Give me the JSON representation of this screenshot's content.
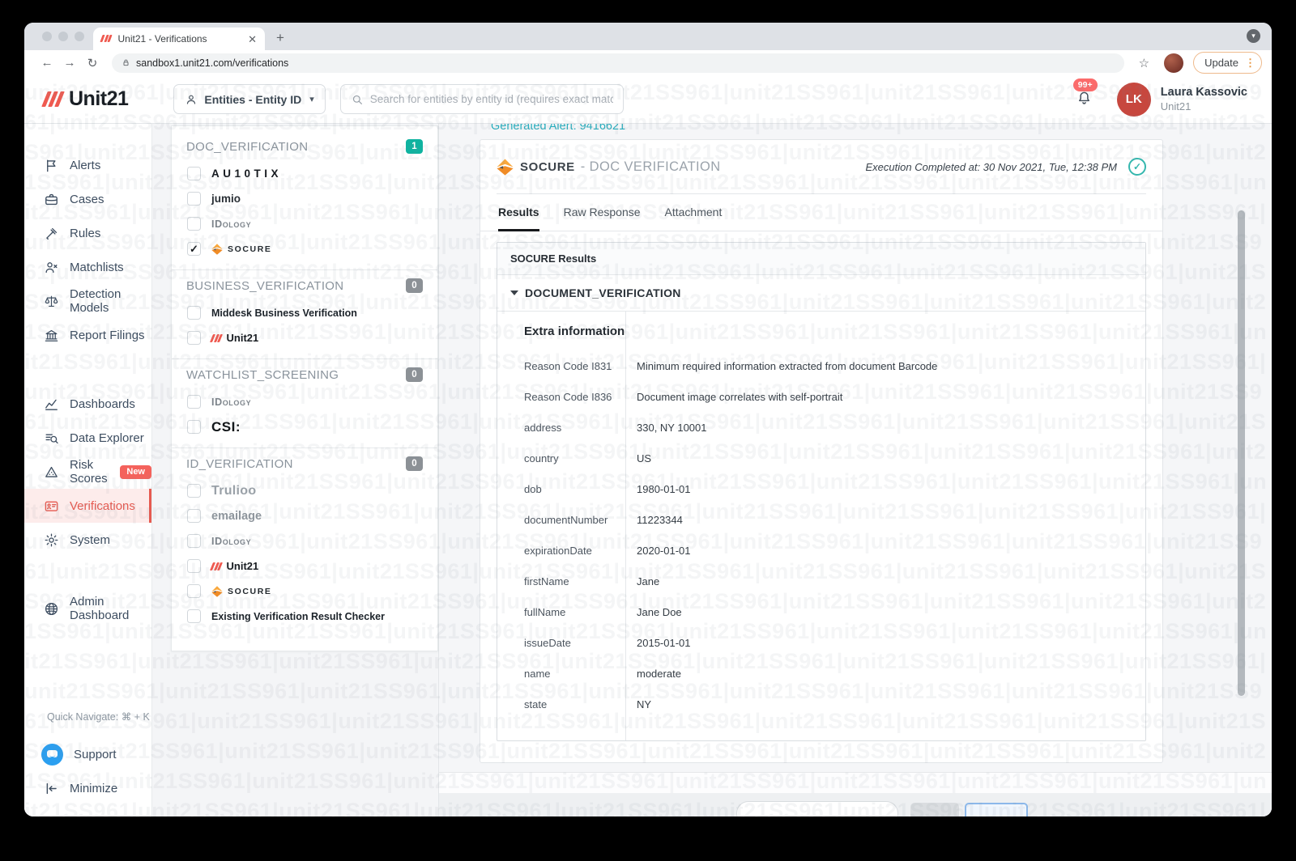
{
  "watermark": {
    "text": "unit21SS961|"
  },
  "browser": {
    "tab_title": "Unit21 - Verifications",
    "close_glyph": "✕",
    "new_tab_glyph": "+",
    "back_glyph": "←",
    "forward_glyph": "→",
    "reload_glyph": "↻",
    "url": "sandbox1.unit21.com/verifications",
    "star_glyph": "☆",
    "update_label": "Update",
    "kebab_glyph": "⋮",
    "download_chevron": "▾"
  },
  "header": {
    "brand": "Unit21",
    "entity_dropdown_label": "Entities - Entity ID",
    "dropdown_chevron": "▾",
    "search_placeholder": "Search for entities by entity id (requires exact match)",
    "notification_count": "99+",
    "user": {
      "initials": "LK",
      "name": "Laura Kassovic",
      "org": "Unit21"
    }
  },
  "sidebar": {
    "items": [
      {
        "label": "Alerts",
        "icon": "flag-icon"
      },
      {
        "label": "Cases",
        "icon": "briefcase-icon"
      },
      {
        "label": "Rules",
        "icon": "gavel-icon"
      },
      {
        "label": "Matchlists",
        "icon": "matchlist-icon"
      },
      {
        "label": "Detection Models",
        "icon": "scales-icon"
      },
      {
        "label": "Report Filings",
        "icon": "bank-icon",
        "gap_after": true
      },
      {
        "label": "Dashboards",
        "icon": "chart-icon"
      },
      {
        "label": "Data Explorer",
        "icon": "data-explorer-icon"
      },
      {
        "label": "Risk Scores",
        "icon": "warning-icon",
        "badge": "New"
      },
      {
        "label": "Verifications",
        "icon": "id-card-icon",
        "active": true
      },
      {
        "label": "System",
        "icon": "gear-icon",
        "gap_after": true
      },
      {
        "label": "Admin Dashboard",
        "icon": "globe-icon"
      }
    ],
    "quick_navigate": "Quick Navigate: ⌘ + K",
    "support_label": "Support",
    "minimize_label": "Minimize"
  },
  "checklist": {
    "sections": [
      {
        "label": "DOC_VERIFICATION",
        "count": "1",
        "badge_color": "#0fb3a0",
        "items": [
          {
            "label": "AU10TIX",
            "logo": "au10tix",
            "checked": false
          },
          {
            "label": "jumio",
            "logo": "jumio",
            "checked": false
          },
          {
            "label": "IDology",
            "logo": "idology",
            "checked": false
          },
          {
            "label": "SOCURE",
            "logo": "socure",
            "checked": true
          }
        ]
      },
      {
        "label": "BUSINESS_VERIFICATION",
        "count": "0",
        "badge_color": "#8c9196",
        "items": [
          {
            "label": "Middesk Business Verification",
            "logo": "plain",
            "checked": false
          },
          {
            "label": "Unit21",
            "logo": "unit21",
            "checked": false
          }
        ]
      },
      {
        "label": "WATCHLIST_SCREENING",
        "count": "0",
        "badge_color": "#8c9196",
        "items": [
          {
            "label": "IDology",
            "logo": "idology",
            "checked": false
          },
          {
            "label": "CSI:",
            "logo": "csi",
            "checked": false
          }
        ]
      },
      {
        "label": "ID_VERIFICATION",
        "count": "0",
        "badge_color": "#8c9196",
        "items": [
          {
            "label": "Trulioo",
            "logo": "trulioo",
            "checked": false
          },
          {
            "label": "emailage",
            "logo": "emailage",
            "checked": false
          },
          {
            "label": "IDology",
            "logo": "idology",
            "checked": false
          },
          {
            "label": "Unit21",
            "logo": "unit21",
            "checked": false
          },
          {
            "label": "SOCURE",
            "logo": "socure",
            "checked": false
          },
          {
            "label": "Existing Verification Result Checker",
            "logo": "plain",
            "checked": false
          }
        ]
      }
    ]
  },
  "main": {
    "generated_alert": "Generated Alert: 9416621",
    "card": {
      "vendor": "SOCURE",
      "title_suffix": "- DOC VERIFICATION",
      "completed_at": "Execution Completed at: 30 Nov 2021, Tue, 12:38 PM",
      "check_glyph": "✓",
      "tabs": [
        {
          "label": "Results",
          "active": true
        },
        {
          "label": "Raw Response",
          "active": false
        },
        {
          "label": "Attachment",
          "active": false
        }
      ],
      "results_header": "SOCURE Results",
      "accordion_title": "DOCUMENT_VERIFICATION",
      "table": {
        "group_header": "Extra information",
        "rows": [
          {
            "key": "Reason Code I831",
            "value": "Minimum required information extracted from document Barcode"
          },
          {
            "key": "Reason Code I836",
            "value": "Document image correlates with self-portrait"
          },
          {
            "key": "address",
            "value": "330, NY 10001"
          },
          {
            "key": "country",
            "value": "US"
          },
          {
            "key": "dob",
            "value": "1980-01-01"
          },
          {
            "key": "documentNumber",
            "value": "11223344"
          },
          {
            "key": "expirationDate",
            "value": "2020-01-01"
          },
          {
            "key": "firstName",
            "value": "Jane"
          },
          {
            "key": "fullName",
            "value": "Jane Doe"
          },
          {
            "key": "issueDate",
            "value": "2015-01-01"
          },
          {
            "key": "name",
            "value": "moderate"
          },
          {
            "key": "state",
            "value": "NY"
          }
        ]
      }
    }
  },
  "colors": {
    "accent_red": "#e65a50",
    "teal_link": "#28adbd",
    "teal_badge": "#0fb3a0",
    "gray_badge": "#8c9196",
    "check_teal": "#35b7ae",
    "update_border": "#eeb98b"
  }
}
